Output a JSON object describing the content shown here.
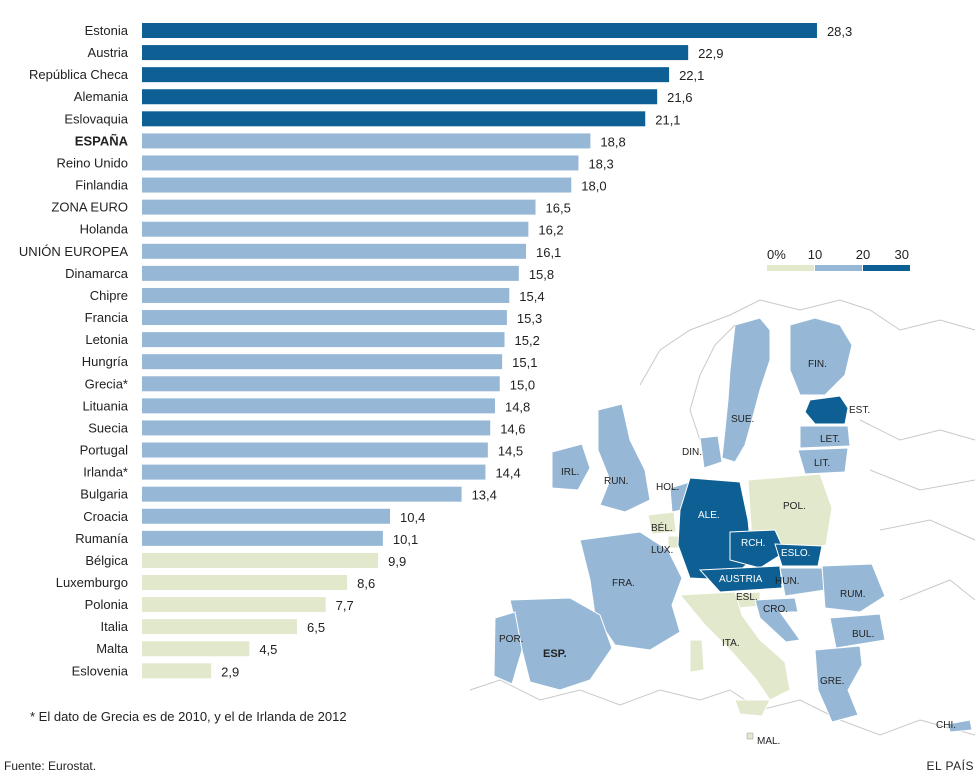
{
  "chart_data": {
    "type": "bar",
    "orientation": "horizontal",
    "categories": [
      "Estonia",
      "Austria",
      "República Checa",
      "Alemania",
      "Eslovaquia",
      "ESPAÑA",
      "Reino Unido",
      "Finlandia",
      "ZONA EURO",
      "Holanda",
      "UNIÓN EUROPEA",
      "Dinamarca",
      "Chipre",
      "Francia",
      "Letonia",
      "Hungría",
      "Grecia*",
      "Lituania",
      "Suecia",
      "Portugal",
      "Irlanda*",
      "Bulgaria",
      "Croacia",
      "Rumanía",
      "Bélgica",
      "Luxemburgo",
      "Polonia",
      "Italia",
      "Malta",
      "Eslovenia"
    ],
    "values": [
      28.3,
      22.9,
      22.1,
      21.6,
      21.1,
      18.8,
      18.3,
      18.0,
      16.5,
      16.2,
      16.1,
      15.8,
      15.4,
      15.3,
      15.2,
      15.1,
      15.0,
      14.8,
      14.6,
      14.5,
      14.4,
      13.4,
      10.4,
      10.1,
      9.9,
      8.6,
      7.7,
      6.5,
      4.5,
      2.9
    ],
    "value_labels": [
      "28,3",
      "22,9",
      "22,1",
      "21,6",
      "21,1",
      "18,8",
      "18,3",
      "18,0",
      "16,5",
      "16,2",
      "16,1",
      "15,8",
      "15,4",
      "15,3",
      "15,2",
      "15,1",
      "15,0",
      "14,8",
      "14,6",
      "14,5",
      "14,4",
      "13,4",
      "10,4",
      "10,1",
      "9,9",
      "8,6",
      "7,7",
      "6,5",
      "4,5",
      "2,9"
    ],
    "bold_categories": [
      "ESPAÑA"
    ],
    "xlim": [
      0,
      30
    ],
    "color_scale": {
      "labels": [
        "0%",
        "10",
        "20",
        "30"
      ],
      "bins": [
        {
          "from": 0,
          "to": 10,
          "color": "#e2e8cc"
        },
        {
          "from": 10,
          "to": 20,
          "color": "#96b8d6"
        },
        {
          "from": 20,
          "to": 30,
          "color": "#0d5f94"
        }
      ]
    },
    "grid": false,
    "legend": "right, above map"
  },
  "map": {
    "labels": [
      {
        "text": "FIN.",
        "tone": "dark"
      },
      {
        "text": "EST.",
        "tone": "dark"
      },
      {
        "text": "SUE.",
        "tone": "dark"
      },
      {
        "text": "LET.",
        "tone": "dark"
      },
      {
        "text": "LIT.",
        "tone": "dark"
      },
      {
        "text": "DIN.",
        "tone": "dark"
      },
      {
        "text": "IRL.",
        "tone": "dark"
      },
      {
        "text": "RUN.",
        "tone": "dark"
      },
      {
        "text": "HOL.",
        "tone": "dark"
      },
      {
        "text": "POL.",
        "tone": "dark"
      },
      {
        "text": "ALE.",
        "tone": "light"
      },
      {
        "text": "BÉL.",
        "tone": "dark"
      },
      {
        "text": "LUX.",
        "tone": "dark"
      },
      {
        "text": "RCH.",
        "tone": "light"
      },
      {
        "text": "ESLO.",
        "tone": "light"
      },
      {
        "text": "AUSTRIA",
        "tone": "light"
      },
      {
        "text": "HUN.",
        "tone": "dark"
      },
      {
        "text": "FRA.",
        "tone": "dark"
      },
      {
        "text": "RUM.",
        "tone": "dark"
      },
      {
        "text": "ESL.",
        "tone": "dark"
      },
      {
        "text": "CRO.",
        "tone": "dark"
      },
      {
        "text": "BUL.",
        "tone": "dark"
      },
      {
        "text": "POR.",
        "tone": "dark"
      },
      {
        "text": "ESP.",
        "tone": "dark"
      },
      {
        "text": "ITA.",
        "tone": "dark"
      },
      {
        "text": "GRE.",
        "tone": "dark"
      },
      {
        "text": "CHI.",
        "tone": "dark"
      },
      {
        "text": "MAL.",
        "tone": "dark"
      }
    ]
  },
  "footnote": "* El dato de Grecia es de 2010, y el de Irlanda de 2012",
  "source": "Fuente: Eurostat.",
  "brand": "EL PAÍS"
}
